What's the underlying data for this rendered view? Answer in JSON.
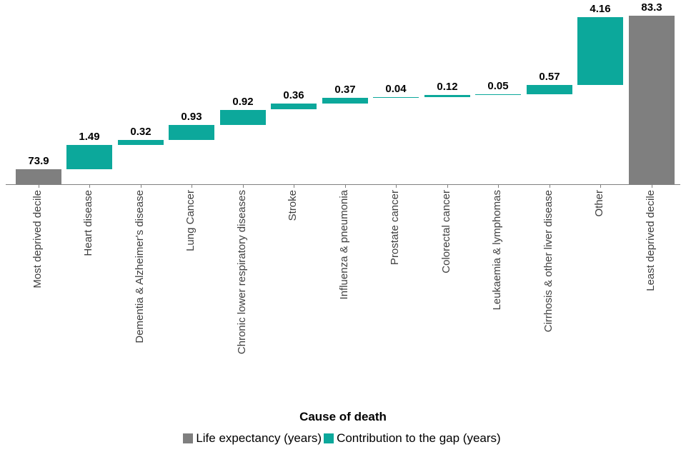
{
  "chart_data": {
    "type": "bar",
    "subtype": "waterfall",
    "title": "",
    "xlabel": "Cause of death",
    "ylabel": "",
    "ylim": [
      73,
      84
    ],
    "grid": false,
    "legend_position": "bottom",
    "colors": {
      "total": "#7f7f7f",
      "delta": "#0ca89b",
      "axis": "#808080",
      "category_label": "#404040",
      "value_label": "#000000"
    },
    "series": [
      {
        "name": "Life expectancy (years)",
        "color": "#7f7f7f"
      },
      {
        "name": "Contribution to the gap (years)",
        "color": "#0ca89b"
      }
    ],
    "categories": [
      "Most deprived decile",
      "Heart disease",
      "Dementia & Alzheimer's disease",
      "Lung Cancer",
      "Chronic lower respiratory diseases",
      "Stroke",
      "Influenza & pneumonia",
      "Prostate cancer",
      "Colorectal cancer",
      "Leukaemia & lymphomas",
      "Cirrhosis & other liver disease",
      "Other",
      "Least deprived decile"
    ],
    "bars": [
      {
        "label": "Most deprived decile",
        "value": 73.9,
        "display": "73.9",
        "kind": "total"
      },
      {
        "label": "Heart disease",
        "value": 1.49,
        "display": "1.49",
        "kind": "delta"
      },
      {
        "label": "Dementia & Alzheimer's disease",
        "value": 0.32,
        "display": "0.32",
        "kind": "delta"
      },
      {
        "label": "Lung Cancer",
        "value": 0.93,
        "display": "0.93",
        "kind": "delta"
      },
      {
        "label": "Chronic lower respiratory diseases",
        "value": 0.92,
        "display": "0.92",
        "kind": "delta"
      },
      {
        "label": "Stroke",
        "value": 0.36,
        "display": "0.36",
        "kind": "delta"
      },
      {
        "label": "Influenza & pneumonia",
        "value": 0.37,
        "display": "0.37",
        "kind": "delta"
      },
      {
        "label": "Prostate cancer",
        "value": 0.04,
        "display": "0.04",
        "kind": "delta"
      },
      {
        "label": "Colorectal cancer",
        "value": 0.12,
        "display": "0.12",
        "kind": "delta"
      },
      {
        "label": "Leukaemia & lymphomas",
        "value": 0.05,
        "display": "0.05",
        "kind": "delta"
      },
      {
        "label": "Cirrhosis & other liver disease",
        "value": 0.57,
        "display": "0.57",
        "kind": "delta"
      },
      {
        "label": "Other",
        "value": 4.16,
        "display": "4.16",
        "kind": "delta"
      },
      {
        "label": "Least deprived decile",
        "value": 83.3,
        "display": "83.3",
        "kind": "total"
      }
    ]
  },
  "legend": {
    "items": [
      {
        "label": "Life expectancy (years)",
        "color": "#7f7f7f"
      },
      {
        "label": "Contribution to the gap (years)",
        "color": "#0ca89b"
      }
    ]
  }
}
